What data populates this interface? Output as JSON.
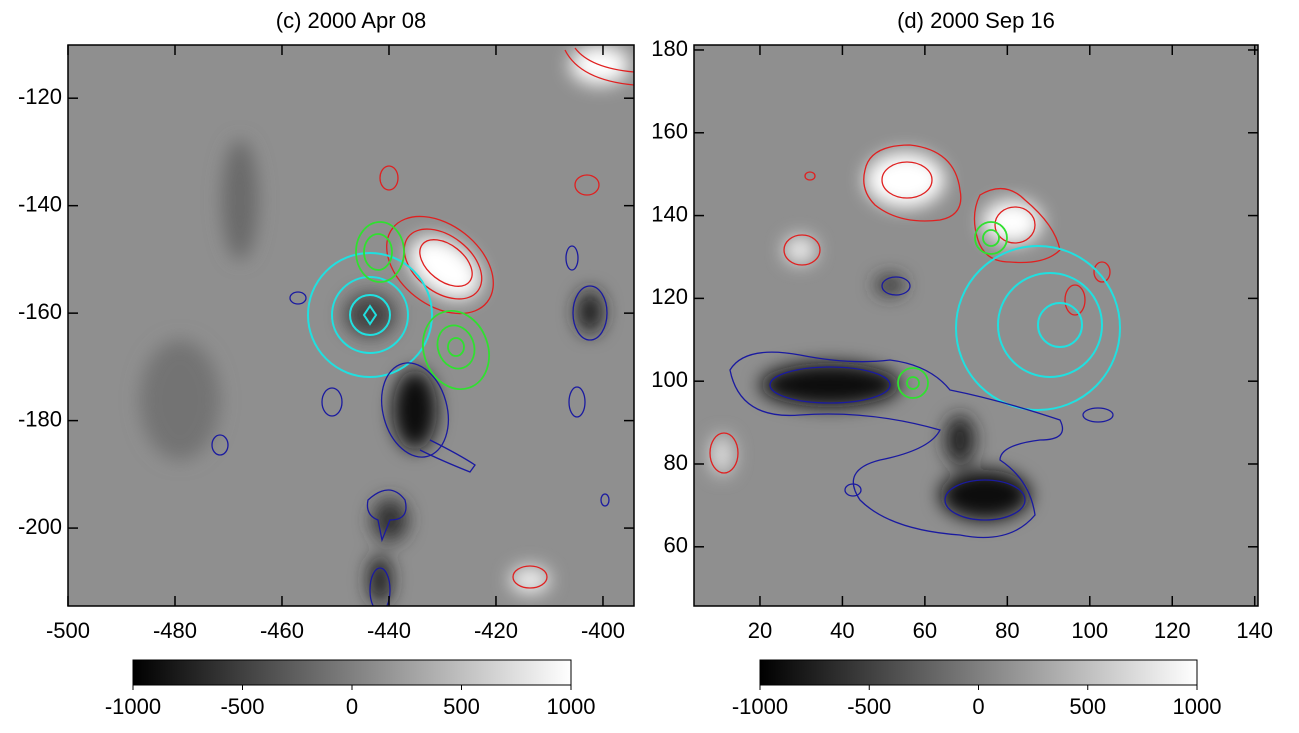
{
  "chart_data": [
    {
      "type": "heatmap",
      "title": "(c) 2000 Apr 08",
      "xlim": [
        -500,
        -394.2
      ],
      "xticks": [
        -500,
        -480,
        -460,
        -440,
        -420,
        -400
      ],
      "ylim": [
        -214.5,
        -110.1
      ],
      "yticks": [
        -120,
        -140,
        -160,
        -180,
        -200
      ],
      "colorbar": {
        "lim": [
          -1000,
          1000
        ],
        "ticks": [
          -1000,
          -500,
          0,
          500,
          1000
        ]
      }
    },
    {
      "type": "heatmap",
      "title": "(d) 2000 Sep 16",
      "xlim": [
        4,
        140.8
      ],
      "xticks": [
        20,
        40,
        60,
        80,
        100,
        120,
        140
      ],
      "ylim": [
        45.7,
        181.2
      ],
      "yticks": [
        60,
        80,
        100,
        120,
        140,
        160,
        180
      ],
      "colorbar": {
        "lim": [
          -1000,
          1000
        ],
        "ticks": [
          -1000,
          -500,
          0,
          500,
          1000
        ]
      }
    }
  ]
}
